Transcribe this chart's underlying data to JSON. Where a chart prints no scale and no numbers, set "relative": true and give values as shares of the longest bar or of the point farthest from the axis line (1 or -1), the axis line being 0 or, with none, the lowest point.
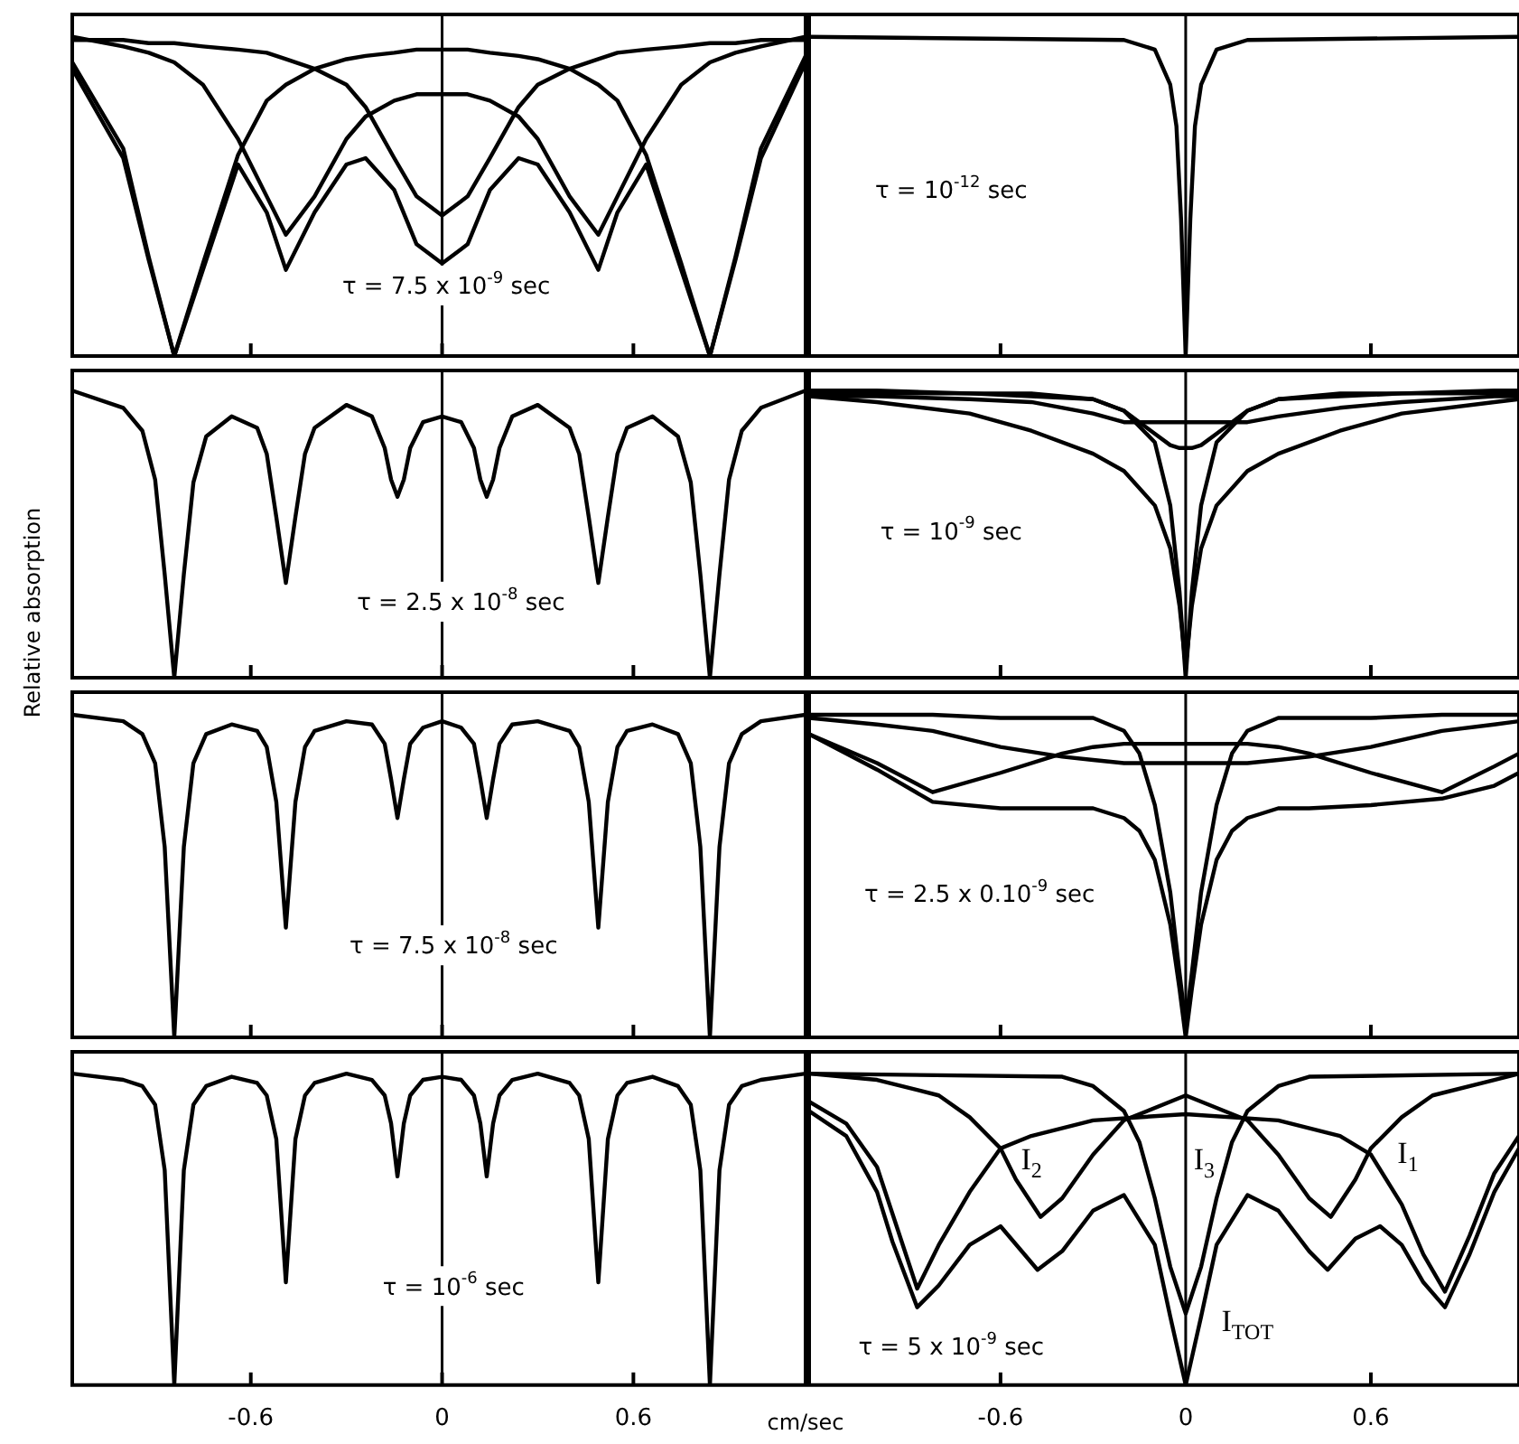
{
  "chart_data": [
    {
      "type": "line",
      "relative": true,
      "xlim": [
        -1.16,
        1.14
      ],
      "xticks": [
        -0.6,
        0,
        0.6
      ],
      "tick_labels": false,
      "ref_lines": [
        {
          "axis": "x",
          "value": 0
        }
      ],
      "annotations": [
        "τ = 7.5 x 10$^{-9}$ sec"
      ],
      "x": [
        -1.16,
        -1.0,
        -0.92,
        -0.84,
        -0.75,
        -0.64,
        -0.55,
        -0.49,
        -0.4,
        -0.3,
        -0.24,
        -0.15,
        -0.08,
        0,
        0.08,
        0.15,
        0.24,
        0.3,
        0.4,
        0.49,
        0.55,
        0.64,
        0.75,
        0.84,
        0.92,
        1.0,
        1.14
      ],
      "series": [
        {
          "color": "#000000",
          "values": [
            0.92,
            0.65,
            0.31,
            0.0,
            0.29,
            0.63,
            0.8,
            0.85,
            0.9,
            0.93,
            0.94,
            0.95,
            0.96,
            0.96,
            0.96,
            0.95,
            0.94,
            0.93,
            0.9,
            0.85,
            0.8,
            0.63,
            0.29,
            0.0,
            0.31,
            0.65,
            0.94
          ]
        },
        {
          "color": "#000000",
          "values": [
            1.0,
            0.97,
            0.95,
            0.92,
            0.85,
            0.68,
            0.5,
            0.38,
            0.5,
            0.68,
            0.75,
            0.8,
            0.82,
            0.82,
            0.82,
            0.8,
            0.75,
            0.68,
            0.5,
            0.38,
            0.5,
            0.68,
            0.85,
            0.92,
            0.95,
            0.97,
            1.0
          ]
        },
        {
          "color": "#000000",
          "values": [
            0.99,
            0.99,
            0.98,
            0.98,
            0.97,
            0.96,
            0.95,
            0.93,
            0.9,
            0.85,
            0.78,
            0.62,
            0.5,
            0.44,
            0.5,
            0.62,
            0.78,
            0.85,
            0.9,
            0.93,
            0.95,
            0.96,
            0.97,
            0.98,
            0.98,
            0.99,
            0.99
          ]
        },
        {
          "color": "#000000",
          "values": [
            0.9,
            0.62,
            0.3,
            0.0,
            0.27,
            0.6,
            0.45,
            0.27,
            0.45,
            0.6,
            0.62,
            0.52,
            0.35,
            0.29,
            0.35,
            0.52,
            0.62,
            0.6,
            0.45,
            0.27,
            0.45,
            0.6,
            0.27,
            0.0,
            0.3,
            0.62,
            0.92
          ]
        }
      ]
    },
    {
      "type": "line",
      "relative": true,
      "xlim": [
        -1.22,
        1.08
      ],
      "xticks": [
        -0.6,
        0,
        0.6
      ],
      "tick_labels": false,
      "ref_lines": [
        {
          "axis": "x",
          "value": 0
        }
      ],
      "annotations": [
        "τ = 10$^{-12}$ sec"
      ],
      "x": [
        -1.22,
        -0.2,
        -0.1,
        -0.05,
        -0.03,
        -0.015,
        0,
        0.015,
        0.03,
        0.05,
        0.1,
        0.2,
        1.08
      ],
      "series": [
        {
          "color": "#000000",
          "values": [
            1.0,
            0.99,
            0.96,
            0.85,
            0.72,
            0.43,
            0,
            0.43,
            0.72,
            0.85,
            0.96,
            0.99,
            1.0
          ]
        }
      ]
    },
    {
      "type": "line",
      "relative": true,
      "xlim": [
        -1.16,
        1.14
      ],
      "xticks": [
        -0.6,
        0,
        0.6
      ],
      "tick_labels": false,
      "ref_lines": [
        {
          "axis": "x",
          "value": 0
        }
      ],
      "annotations": [
        "τ = 2.5 x 10$^{-8}$ sec"
      ],
      "ylabel": "Relative absorption",
      "x": [
        -1.16,
        -1.0,
        -0.94,
        -0.9,
        -0.87,
        -0.84,
        -0.81,
        -0.78,
        -0.74,
        -0.66,
        -0.58,
        -0.55,
        -0.52,
        -0.49,
        -0.46,
        -0.43,
        -0.4,
        -0.3,
        -0.22,
        -0.18,
        -0.16,
        -0.14,
        -0.12,
        -0.1,
        -0.06,
        0,
        0.06,
        0.1,
        0.12,
        0.14,
        0.16,
        0.18,
        0.22,
        0.3,
        0.4,
        0.43,
        0.46,
        0.49,
        0.52,
        0.55,
        0.58,
        0.66,
        0.74,
        0.78,
        0.81,
        0.84,
        0.87,
        0.9,
        0.94,
        1.0,
        1.14
      ],
      "series": [
        {
          "color": "#000000",
          "values": [
            1.0,
            0.94,
            0.86,
            0.69,
            0.36,
            0.0,
            0.36,
            0.68,
            0.84,
            0.91,
            0.87,
            0.78,
            0.56,
            0.33,
            0.56,
            0.78,
            0.87,
            0.95,
            0.91,
            0.8,
            0.69,
            0.63,
            0.69,
            0.8,
            0.89,
            0.91,
            0.89,
            0.8,
            0.69,
            0.63,
            0.69,
            0.8,
            0.91,
            0.95,
            0.87,
            0.78,
            0.56,
            0.33,
            0.56,
            0.78,
            0.87,
            0.91,
            0.84,
            0.68,
            0.36,
            0.0,
            0.36,
            0.69,
            0.86,
            0.94,
            1.0
          ]
        }
      ]
    },
    {
      "type": "line",
      "relative": true,
      "xlim": [
        -1.22,
        1.08
      ],
      "xticks": [
        -0.6,
        0,
        0.6
      ],
      "tick_labels": false,
      "ref_lines": [
        {
          "axis": "x",
          "value": 0
        }
      ],
      "annotations": [
        "τ = 10$^{-9}$ sec"
      ],
      "x": [
        -1.22,
        -1.0,
        -0.7,
        -0.5,
        -0.3,
        -0.2,
        -0.1,
        -0.05,
        -0.02,
        0,
        0.02,
        0.05,
        0.1,
        0.2,
        0.3,
        0.5,
        0.7,
        1.0,
        1.08
      ],
      "series": [
        {
          "color": "#000000",
          "values": [
            0.99,
            0.99,
            0.99,
            0.98,
            0.97,
            0.93,
            0.82,
            0.6,
            0.3,
            0.0,
            0.3,
            0.6,
            0.82,
            0.93,
            0.97,
            0.98,
            0.99,
            0.99,
            0.99
          ]
        },
        {
          "color": "#000000",
          "values": [
            0.98,
            0.96,
            0.92,
            0.86,
            0.78,
            0.72,
            0.6,
            0.45,
            0.25,
            0.04,
            0.25,
            0.45,
            0.6,
            0.72,
            0.78,
            0.86,
            0.92,
            0.96,
            0.97
          ]
        },
        {
          "color": "#000000",
          "values": [
            1.0,
            1.0,
            0.99,
            0.99,
            0.97,
            0.93,
            0.85,
            0.81,
            0.8,
            0.8,
            0.8,
            0.81,
            0.85,
            0.93,
            0.97,
            0.99,
            0.99,
            1.0,
            1.0
          ]
        },
        {
          "color": "#000000",
          "values": [
            0.98,
            0.98,
            0.97,
            0.96,
            0.92,
            0.89,
            0.89,
            0.89,
            0.89,
            0.89,
            0.89,
            0.89,
            0.89,
            0.89,
            0.91,
            0.94,
            0.96,
            0.98,
            0.98
          ]
        }
      ]
    },
    {
      "type": "line",
      "relative": true,
      "xlim": [
        -1.16,
        1.14
      ],
      "xticks": [
        -0.6,
        0,
        0.6
      ],
      "tick_labels": false,
      "ref_lines": [
        {
          "axis": "x",
          "value": 0
        }
      ],
      "annotations": [
        "τ = 7.5 x 10$^{-8}$ sec"
      ],
      "x": [
        -1.16,
        -1.0,
        -0.94,
        -0.9,
        -0.87,
        -0.84,
        -0.81,
        -0.78,
        -0.74,
        -0.66,
        -0.58,
        -0.55,
        -0.52,
        -0.49,
        -0.46,
        -0.43,
        -0.4,
        -0.3,
        -0.22,
        -0.18,
        -0.16,
        -0.14,
        -0.12,
        -0.1,
        -0.06,
        0,
        0.06,
        0.1,
        0.12,
        0.14,
        0.16,
        0.18,
        0.22,
        0.3,
        0.4,
        0.43,
        0.46,
        0.49,
        0.52,
        0.55,
        0.58,
        0.66,
        0.74,
        0.78,
        0.81,
        0.84,
        0.87,
        0.9,
        0.94,
        1.0,
        1.14
      ],
      "series": [
        {
          "color": "#000000",
          "values": [
            1.0,
            0.98,
            0.94,
            0.85,
            0.59,
            0.0,
            0.59,
            0.85,
            0.94,
            0.97,
            0.95,
            0.9,
            0.73,
            0.34,
            0.73,
            0.9,
            0.95,
            0.98,
            0.97,
            0.91,
            0.8,
            0.68,
            0.8,
            0.91,
            0.96,
            0.98,
            0.96,
            0.91,
            0.8,
            0.68,
            0.8,
            0.91,
            0.97,
            0.98,
            0.95,
            0.9,
            0.73,
            0.34,
            0.73,
            0.9,
            0.95,
            0.97,
            0.94,
            0.85,
            0.59,
            0.0,
            0.59,
            0.85,
            0.94,
            0.98,
            1.0
          ]
        }
      ]
    },
    {
      "type": "line",
      "relative": true,
      "xlim": [
        -1.22,
        1.08
      ],
      "xticks": [
        -0.6,
        0,
        0.6
      ],
      "tick_labels": false,
      "ref_lines": [
        {
          "axis": "x",
          "value": 0
        }
      ],
      "annotations": [
        "τ = 2.5 x 0.10$^{-9}$ sec"
      ],
      "x": [
        -1.22,
        -1.0,
        -0.82,
        -0.6,
        -0.4,
        -0.3,
        -0.2,
        -0.15,
        -0.1,
        -0.05,
        -0.02,
        0,
        0.02,
        0.05,
        0.1,
        0.15,
        0.2,
        0.3,
        0.4,
        0.6,
        0.83,
        1.0,
        1.08
      ],
      "series": [
        {
          "color": "#000000",
          "values": [
            1.0,
            1.0,
            1.0,
            0.99,
            0.99,
            0.99,
            0.95,
            0.88,
            0.72,
            0.45,
            0.2,
            0.04,
            0.2,
            0.45,
            0.72,
            0.88,
            0.95,
            0.99,
            0.99,
            0.99,
            1.0,
            1.0,
            1.0
          ]
        },
        {
          "color": "#000000",
          "values": [
            0.94,
            0.85,
            0.76,
            0.82,
            0.88,
            0.9,
            0.91,
            0.91,
            0.91,
            0.91,
            0.91,
            0.91,
            0.91,
            0.91,
            0.91,
            0.91,
            0.91,
            0.9,
            0.88,
            0.82,
            0.76,
            0.84,
            0.88
          ]
        },
        {
          "color": "#000000",
          "values": [
            0.99,
            0.97,
            0.95,
            0.9,
            0.87,
            0.86,
            0.85,
            0.85,
            0.85,
            0.85,
            0.85,
            0.85,
            0.85,
            0.85,
            0.85,
            0.85,
            0.85,
            0.86,
            0.87,
            0.9,
            0.95,
            0.97,
            0.98
          ]
        },
        {
          "color": "#000000",
          "values": [
            0.94,
            0.83,
            0.73,
            0.71,
            0.71,
            0.71,
            0.68,
            0.64,
            0.55,
            0.35,
            0.15,
            0.0,
            0.15,
            0.35,
            0.55,
            0.64,
            0.68,
            0.71,
            0.71,
            0.72,
            0.74,
            0.78,
            0.82
          ]
        }
      ]
    },
    {
      "type": "line",
      "relative": true,
      "xlim": [
        -1.16,
        1.14
      ],
      "xticks": [
        -0.6,
        0,
        0.6
      ],
      "tick_labels": "x",
      "ref_lines": [
        {
          "axis": "x",
          "value": 0
        }
      ],
      "annotations": [
        "τ = 10$^{-6}$ sec"
      ],
      "xlabel": "cm/sec",
      "x": [
        -1.16,
        -1.0,
        -0.94,
        -0.9,
        -0.87,
        -0.84,
        -0.81,
        -0.78,
        -0.74,
        -0.66,
        -0.58,
        -0.55,
        -0.52,
        -0.49,
        -0.46,
        -0.43,
        -0.4,
        -0.3,
        -0.22,
        -0.18,
        -0.16,
        -0.14,
        -0.12,
        -0.1,
        -0.06,
        0,
        0.06,
        0.1,
        0.12,
        0.14,
        0.16,
        0.18,
        0.22,
        0.3,
        0.4,
        0.43,
        0.46,
        0.49,
        0.52,
        0.55,
        0.58,
        0.66,
        0.74,
        0.78,
        0.81,
        0.84,
        0.87,
        0.9,
        0.94,
        1.0,
        1.14
      ],
      "series": [
        {
          "color": "#000000",
          "values": [
            1.0,
            0.98,
            0.96,
            0.9,
            0.69,
            0.0,
            0.69,
            0.9,
            0.96,
            0.99,
            0.97,
            0.93,
            0.79,
            0.33,
            0.79,
            0.93,
            0.97,
            1.0,
            0.98,
            0.93,
            0.84,
            0.67,
            0.84,
            0.93,
            0.98,
            0.99,
            0.98,
            0.93,
            0.84,
            0.67,
            0.84,
            0.93,
            0.98,
            1.0,
            0.97,
            0.93,
            0.79,
            0.33,
            0.79,
            0.93,
            0.97,
            0.99,
            0.96,
            0.9,
            0.69,
            0.0,
            0.69,
            0.9,
            0.96,
            0.98,
            1.0
          ]
        }
      ]
    },
    {
      "type": "line",
      "relative": true,
      "xlim": [
        -1.22,
        1.08
      ],
      "xticks": [
        -0.6,
        0,
        0.6
      ],
      "tick_labels": "x",
      "ref_lines": [
        {
          "axis": "x",
          "value": 0
        }
      ],
      "annotations": [
        "τ = 5 x 10$^{-9}$ sec"
      ],
      "series": [
        {
          "name": "I$_{1}$",
          "color": "#000000",
          "x": [
            -1.22,
            -1.1,
            -1.0,
            -0.95,
            -0.87,
            -0.8,
            -0.7,
            -0.6,
            -0.5,
            -0.3,
            0,
            0.3,
            0.5,
            0.6,
            0.7,
            0.77,
            0.84,
            0.92,
            1.0,
            1.08
          ],
          "values": [
            0.91,
            0.84,
            0.7,
            0.55,
            0.31,
            0.45,
            0.62,
            0.76,
            0.8,
            0.85,
            0.87,
            0.85,
            0.8,
            0.74,
            0.58,
            0.42,
            0.3,
            0.48,
            0.68,
            0.8
          ]
        },
        {
          "name": "I$_{2}$",
          "color": "#000000",
          "x": [
            -1.22,
            -1.0,
            -0.8,
            -0.7,
            -0.6,
            -0.55,
            -0.47,
            -0.4,
            -0.3,
            -0.2,
            0,
            0.2,
            0.3,
            0.4,
            0.47,
            0.55,
            0.6,
            0.7,
            0.8,
            1.0,
            1.08
          ],
          "values": [
            1.0,
            0.98,
            0.93,
            0.86,
            0.76,
            0.66,
            0.54,
            0.6,
            0.74,
            0.85,
            0.93,
            0.85,
            0.74,
            0.6,
            0.54,
            0.66,
            0.76,
            0.86,
            0.93,
            0.98,
            1.0
          ]
        },
        {
          "name": "I$_{3}$",
          "color": "#000000",
          "x": [
            -1.22,
            -0.4,
            -0.3,
            -0.2,
            -0.15,
            -0.1,
            -0.05,
            0,
            0.05,
            0.1,
            0.15,
            0.2,
            0.3,
            0.4,
            1.08
          ],
          "values": [
            1.0,
            0.99,
            0.96,
            0.88,
            0.78,
            0.6,
            0.38,
            0.23,
            0.38,
            0.6,
            0.78,
            0.88,
            0.96,
            0.99,
            1.0
          ]
        },
        {
          "name": "I$_{TOT}$",
          "color": "#000000",
          "x": [
            -1.22,
            -1.1,
            -1.0,
            -0.95,
            -0.87,
            -0.8,
            -0.7,
            -0.6,
            -0.48,
            -0.4,
            -0.3,
            -0.2,
            -0.1,
            -0.05,
            0,
            0.05,
            0.1,
            0.2,
            0.3,
            0.4,
            0.46,
            0.55,
            0.63,
            0.7,
            0.77,
            0.84,
            0.92,
            1.0,
            1.08
          ],
          "values": [
            0.88,
            0.8,
            0.62,
            0.46,
            0.25,
            0.32,
            0.45,
            0.51,
            0.37,
            0.43,
            0.56,
            0.61,
            0.45,
            0.22,
            0,
            0.22,
            0.45,
            0.61,
            0.56,
            0.43,
            0.37,
            0.47,
            0.51,
            0.45,
            0.33,
            0.25,
            0.42,
            0.62,
            0.76
          ]
        }
      ]
    }
  ]
}
